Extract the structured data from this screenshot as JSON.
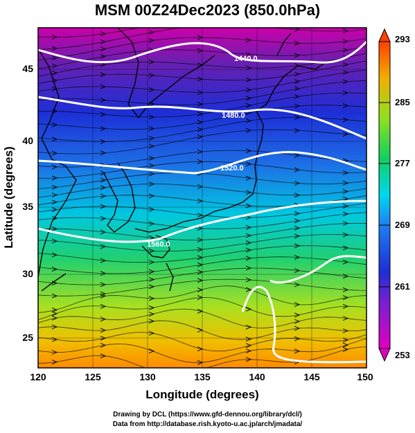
{
  "title": "MSM 00Z24Dec2023 (850.0hPa)",
  "x_axis": {
    "label": "Longitude (degrees)",
    "ticks": [
      "120",
      "125",
      "130",
      "135",
      "140",
      "145",
      "150"
    ]
  },
  "y_axis": {
    "label": "Latitude  (degrees)",
    "ticks": [
      "45",
      "40",
      "35",
      "30",
      "25"
    ]
  },
  "colorbar": {
    "ticks": [
      "293",
      "285",
      "277",
      "269",
      "261",
      "253"
    ]
  },
  "contour_labels": [
    "1440.0",
    "1480.0",
    "1520.0",
    "1560.0"
  ],
  "credits": {
    "line1": "Drawing by DCL (https://www.gfd-dennou.org/library/dcl/)",
    "line2": "Data from http://database.rish.kyoto-u.ac.jp/arch/jmadata/"
  },
  "colors": {
    "contour": "#ffffff",
    "coast": "#000000",
    "warm": "#ff8800",
    "cold": "#cc00cc"
  }
}
